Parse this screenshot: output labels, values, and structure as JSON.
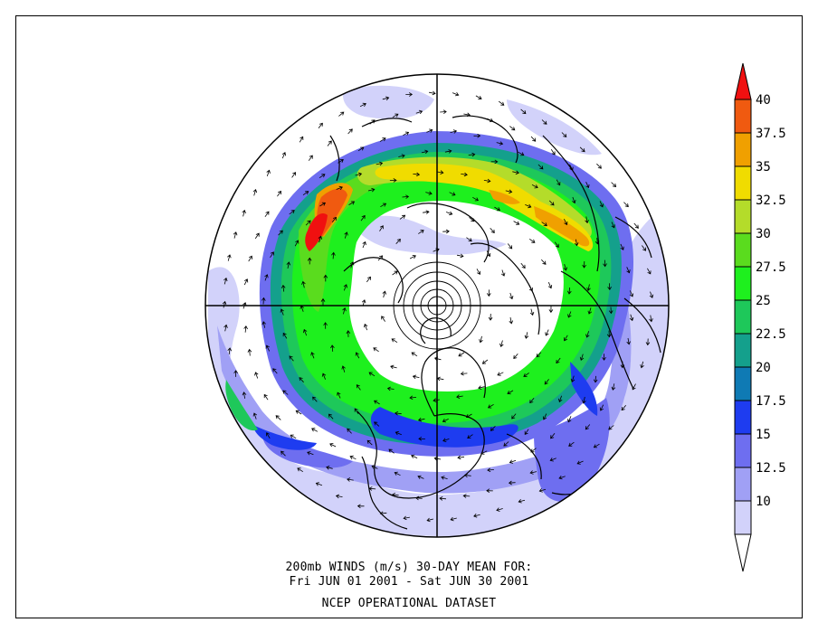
{
  "captions": {
    "line1": "200mb WINDS (m/s)   30-DAY MEAN FOR:",
    "line2": "Fri JUN 01 2001 - Sat JUN 30 2001",
    "line3": "NCEP OPERATIONAL DATASET"
  },
  "colorbar": {
    "labels": [
      "40",
      "37.5",
      "35",
      "32.5",
      "30",
      "27.5",
      "25",
      "22.5",
      "20",
      "17.5",
      "15",
      "12.5",
      "10"
    ],
    "colors_top_to_bottom": [
      "#f01010",
      "#f05a10",
      "#f0a000",
      "#f0dc00",
      "#b4dc2a",
      "#5adc1e",
      "#1ef01e",
      "#1ec85a",
      "#14a08c",
      "#0f7ab4",
      "#1e3cf0",
      "#6e6ef0",
      "#a0a0f5",
      "#d2d2fa",
      "#ffffff"
    ]
  },
  "map": {
    "projection": "north-polar-stereographic",
    "jet_colors": {
      "c10": "#d2d2fa",
      "c12": "#a0a0f5",
      "c15": "#6e6ef0",
      "c17": "#1e3cf0",
      "c20": "#14a08c",
      "c22": "#1ec85a",
      "c25": "#1ef01e",
      "c27": "#5adc1e",
      "c30": "#b4dc2a",
      "c32": "#f0dc00",
      "c35": "#f0a000",
      "c37": "#f05a10",
      "c40": "#f01010"
    }
  }
}
